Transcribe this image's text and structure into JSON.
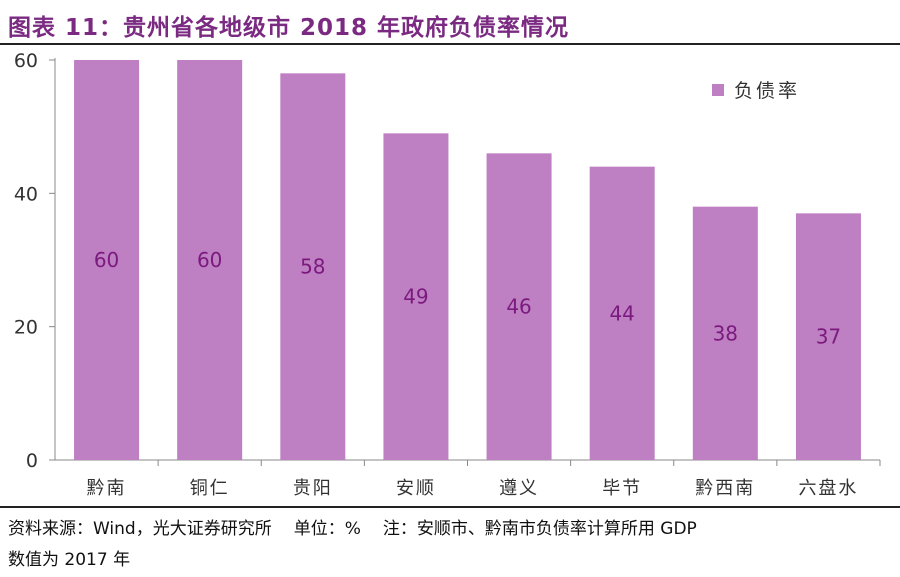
{
  "header": {
    "title": "图表 11：贵州省各地级市 2018 年政府负债率情况"
  },
  "chart_data": {
    "type": "bar",
    "title": "图表 11：贵州省各地级市 2018 年政府负债率情况",
    "categories": [
      "黔南",
      "铜仁",
      "贵阳",
      "安顺",
      "遵义",
      "毕节",
      "黔西南",
      "六盘水"
    ],
    "series": [
      {
        "name": "负债率",
        "values": [
          60,
          60,
          58,
          49,
          46,
          44,
          38,
          37
        ]
      }
    ],
    "data_labels": [
      "60",
      "60",
      "58",
      "49",
      "46",
      "44",
      "38",
      "37"
    ],
    "yticks": [
      0,
      20,
      40,
      60
    ],
    "ylim": [
      0,
      60
    ],
    "xlabel": "",
    "ylabel": "",
    "legend_position": "top-right",
    "grid": false,
    "colors": {
      "bar": "#bf7fc3",
      "label": "#7b1a7e",
      "axis": "#888888"
    }
  },
  "footer": {
    "source": "资料来源：Wind，光大证券研究所",
    "unit": "单位：%",
    "note": "注：安顺市、黔南市负债率计算所用 GDP",
    "note2": "数值为 2017 年"
  }
}
